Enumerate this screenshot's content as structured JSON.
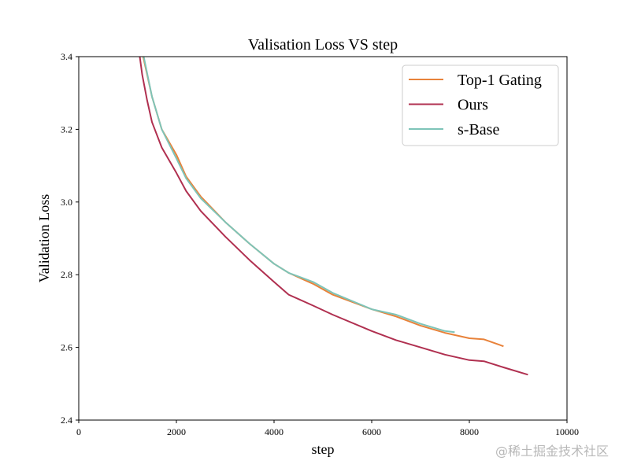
{
  "chart_data": {
    "type": "line",
    "title": "Valisation Loss VS step",
    "xlabel": "step",
    "ylabel": "Validation Loss",
    "xlim": [
      0,
      10000
    ],
    "ylim": [
      2.4,
      3.4
    ],
    "x_ticks": [
      0,
      2000,
      4000,
      6000,
      8000,
      10000
    ],
    "x_tick_labels": [
      "0",
      "2000",
      "4000",
      "6000",
      "8000",
      "10000"
    ],
    "y_ticks": [
      2.4,
      2.6,
      2.8,
      3.0,
      3.2,
      3.4
    ],
    "y_tick_labels": [
      "2.4",
      "2.6",
      "2.8",
      "3.0",
      "3.2",
      "3.4"
    ],
    "grid": false,
    "legend_position": "top-right",
    "series": [
      {
        "name": "Top-1 Gating",
        "color": "#e8823a",
        "points": [
          [
            1320,
            3.4
          ],
          [
            1500,
            3.29
          ],
          [
            1700,
            3.2
          ],
          [
            2000,
            3.13
          ],
          [
            2200,
            3.07
          ],
          [
            2500,
            3.015
          ],
          [
            3000,
            2.945
          ],
          [
            3500,
            2.885
          ],
          [
            4000,
            2.83
          ],
          [
            4300,
            2.805
          ],
          [
            4800,
            2.775
          ],
          [
            5200,
            2.745
          ],
          [
            6000,
            2.705
          ],
          [
            6500,
            2.685
          ],
          [
            7000,
            2.66
          ],
          [
            7500,
            2.64
          ],
          [
            8000,
            2.625
          ],
          [
            8300,
            2.622
          ],
          [
            8700,
            2.603
          ]
        ]
      },
      {
        "name": "Ours",
        "color": "#b03050",
        "points": [
          [
            1250,
            3.4
          ],
          [
            1300,
            3.35
          ],
          [
            1400,
            3.28
          ],
          [
            1500,
            3.22
          ],
          [
            1700,
            3.15
          ],
          [
            2000,
            3.08
          ],
          [
            2200,
            3.03
          ],
          [
            2500,
            2.975
          ],
          [
            3000,
            2.905
          ],
          [
            3500,
            2.84
          ],
          [
            4000,
            2.78
          ],
          [
            4300,
            2.745
          ],
          [
            4800,
            2.715
          ],
          [
            5200,
            2.69
          ],
          [
            6000,
            2.645
          ],
          [
            6500,
            2.62
          ],
          [
            7000,
            2.6
          ],
          [
            7500,
            2.58
          ],
          [
            8000,
            2.565
          ],
          [
            8300,
            2.562
          ],
          [
            8700,
            2.545
          ],
          [
            9200,
            2.525
          ]
        ]
      },
      {
        "name": "s-Base",
        "color": "#7ec4b8",
        "points": [
          [
            1330,
            3.4
          ],
          [
            1500,
            3.29
          ],
          [
            1700,
            3.2
          ],
          [
            2000,
            3.12
          ],
          [
            2200,
            3.065
          ],
          [
            2500,
            3.01
          ],
          [
            3000,
            2.945
          ],
          [
            3500,
            2.885
          ],
          [
            4000,
            2.83
          ],
          [
            4300,
            2.805
          ],
          [
            4800,
            2.78
          ],
          [
            5200,
            2.75
          ],
          [
            6000,
            2.705
          ],
          [
            6500,
            2.69
          ],
          [
            7000,
            2.665
          ],
          [
            7500,
            2.645
          ],
          [
            7700,
            2.642
          ]
        ]
      }
    ]
  },
  "watermark": "@稀土掘金技术社区"
}
